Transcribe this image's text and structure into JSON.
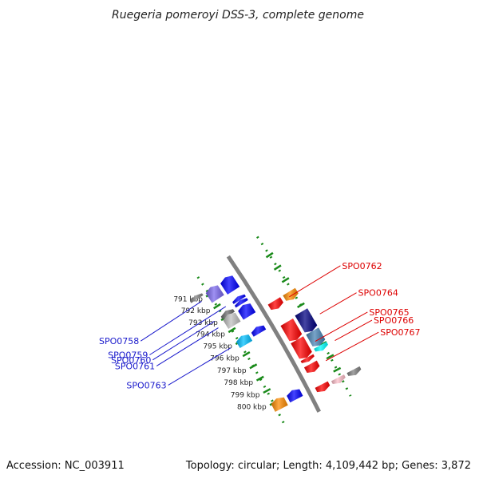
{
  "title": "Ruegeria pomeroyi DSS-3, complete genome",
  "accession_text": "Accession: NC_003911",
  "stats_text": "Topology: circular; Length: 4,109,442 bp; Genes: 3,872",
  "colors": {
    "backbone": "#808080",
    "ruler_ticks": "#1a8a1a",
    "label_reverse": "#1a1acc",
    "label_forward": "#dd0000"
  },
  "ruler": {
    "unit": "kbp",
    "ticks": [
      {
        "kbp": 791,
        "label": "791 kbp"
      },
      {
        "kbp": 792,
        "label": "792 kbp"
      },
      {
        "kbp": 793,
        "label": "793 kbp"
      },
      {
        "kbp": 794,
        "label": "794 kbp"
      },
      {
        "kbp": 795,
        "label": "795 kbp"
      },
      {
        "kbp": 796,
        "label": "796 kbp"
      },
      {
        "kbp": 797,
        "label": "797 kbp"
      },
      {
        "kbp": 798,
        "label": "798 kbp"
      },
      {
        "kbp": 799,
        "label": "799 kbp"
      },
      {
        "kbp": 800,
        "label": "800 kbp"
      }
    ]
  },
  "genes": [
    {
      "start": 790.6,
      "end": 791.6,
      "ring": -2,
      "color": "#7b68ee",
      "label": "SPO0758"
    },
    {
      "start": 790.6,
      "end": 791.7,
      "ring": -1,
      "color": "#0000ff",
      "label": ""
    },
    {
      "start": 790.5,
      "end": 790.8,
      "ring": -3,
      "color": "#808080",
      "label": ""
    },
    {
      "start": 792.2,
      "end": 792.5,
      "ring": -1,
      "color": "#0000ff",
      "label": "SPO0759"
    },
    {
      "start": 792.5,
      "end": 792.8,
      "ring": -1,
      "color": "#0000ff",
      "label": ""
    },
    {
      "start": 792.6,
      "end": 793.0,
      "ring": -2,
      "color": "#696969",
      "label": "SPO0760"
    },
    {
      "start": 792.9,
      "end": 793.8,
      "ring": -2,
      "color": "#c0c0c0",
      "label": "SPO0761"
    },
    {
      "start": 792.9,
      "end": 793.8,
      "ring": -1,
      "color": "#0000ff",
      "label": ""
    },
    {
      "start": 793.8,
      "end": 794.4,
      "ring": 1,
      "color": "#ff0000",
      "label": "SPO0762"
    },
    {
      "start": 793.8,
      "end": 794.4,
      "ring": 2,
      "color": "#ff8c00",
      "label": ""
    },
    {
      "start": 794.7,
      "end": 795.2,
      "ring": -1,
      "color": "#0000ff",
      "label": ""
    },
    {
      "start": 794.7,
      "end": 795.4,
      "ring": -2,
      "color": "#00bfff",
      "label": "SPO0763"
    },
    {
      "start": 795.5,
      "end": 796.9,
      "ring": 1,
      "color": "#ff0000",
      "label": ""
    },
    {
      "start": 795.4,
      "end": 796.9,
      "ring": 2,
      "color": "#000080",
      "label": "SPO0764"
    },
    {
      "start": 796.9,
      "end": 798.3,
      "ring": 1,
      "color": "#ff0000",
      "label": "SPO0765"
    },
    {
      "start": 796.9,
      "end": 798.0,
      "ring": 2,
      "color": "#4682b4",
      "label": ""
    },
    {
      "start": 798.3,
      "end": 798.6,
      "ring": 1,
      "color": "#ff0000",
      "label": ""
    },
    {
      "start": 798.0,
      "end": 798.4,
      "ring": 2,
      "color": "#00ffff",
      "label": "SPO0766"
    },
    {
      "start": 798.8,
      "end": 799.4,
      "ring": 1,
      "color": "#ff0000",
      "label": "SPO0767"
    },
    {
      "start": 799.8,
      "end": 800.6,
      "ring": -2,
      "color": "#ff8c00",
      "label": ""
    },
    {
      "start": 799.8,
      "end": 800.5,
      "ring": -1,
      "color": "#0000ff",
      "label": ""
    },
    {
      "start": 800.4,
      "end": 800.9,
      "ring": 1,
      "color": "#ff0000",
      "label": ""
    },
    {
      "start": 800.5,
      "end": 800.9,
      "ring": 2,
      "color": "#ffc0cb",
      "label": ""
    },
    {
      "start": 800.5,
      "end": 800.9,
      "ring": 3,
      "color": "#808080",
      "label": ""
    }
  ]
}
